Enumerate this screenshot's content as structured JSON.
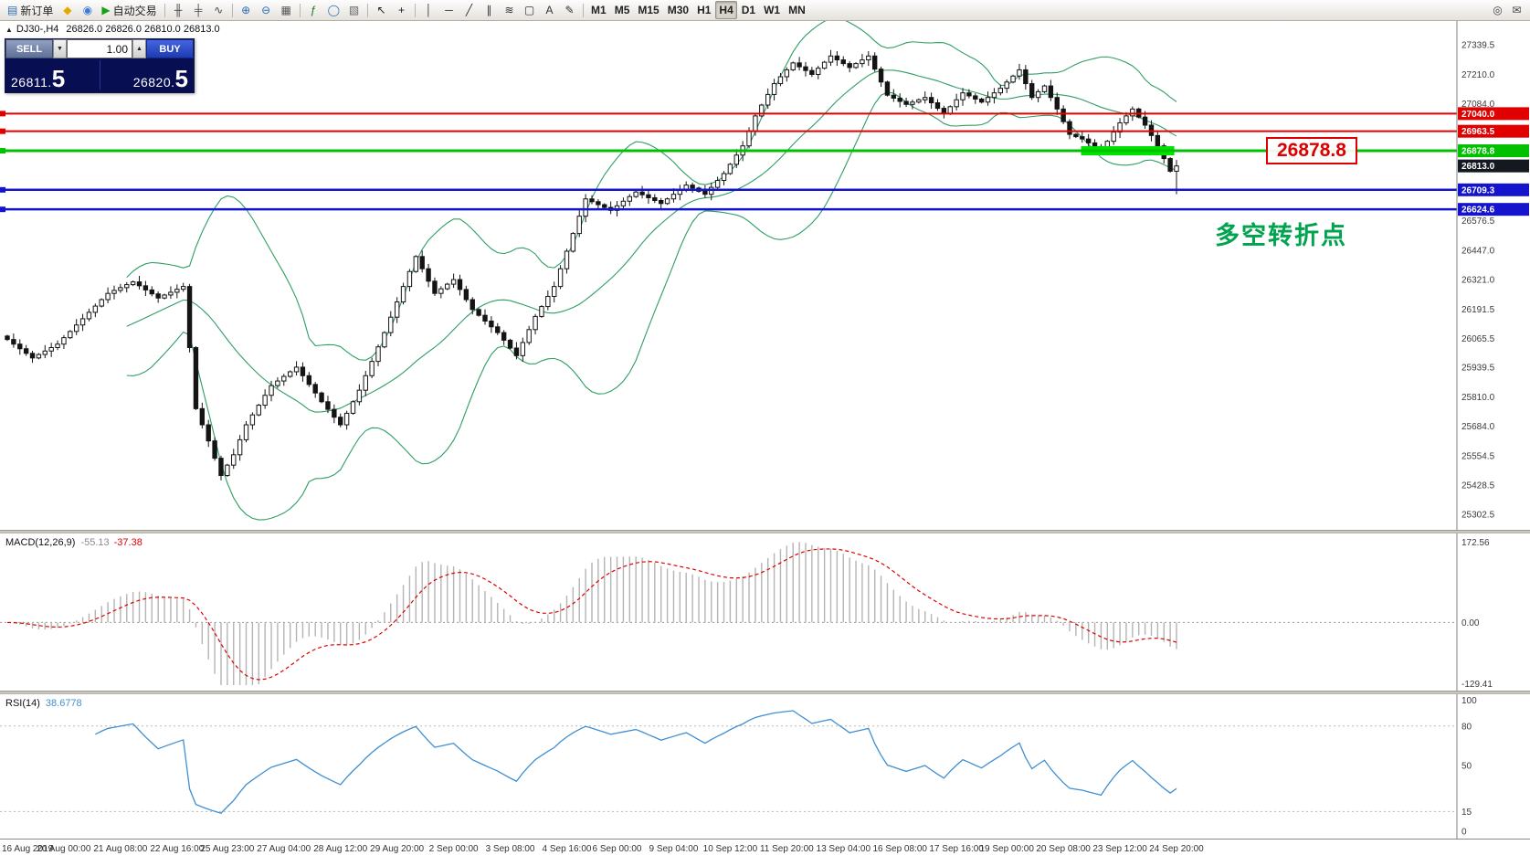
{
  "ui": {
    "collapse": "▲",
    "spin_down": "▼",
    "spin_up": "▲"
  },
  "toolbar": {
    "groups": [
      {
        "name": "trade",
        "items": [
          {
            "name": "new-order-button",
            "glyph": "▤",
            "color": "#2a6db5",
            "label": "新订单"
          },
          {
            "name": "mql5-icon",
            "glyph": "◆",
            "color": "#e2a900",
            "label": ""
          },
          {
            "name": "community-icon",
            "glyph": "◉",
            "color": "#3a7bd5",
            "label": ""
          },
          {
            "name": "autotrade-button",
            "glyph": "▶",
            "color": "#18a018",
            "label": "自动交易"
          }
        ]
      },
      {
        "name": "chart-type",
        "items": [
          {
            "name": "bar-chart-button",
            "glyph": "╫",
            "color": "#444",
            "label": ""
          },
          {
            "name": "candlestick-chart-button",
            "glyph": "╪",
            "color": "#444",
            "label": ""
          },
          {
            "name": "line-chart-button",
            "glyph": "∿",
            "color": "#444",
            "label": ""
          }
        ]
      },
      {
        "name": "zoom",
        "items": [
          {
            "name": "zoom-in-button",
            "glyph": "⊕",
            "color": "#2a6db5",
            "label": ""
          },
          {
            "name": "zoom-out-button",
            "glyph": "⊖",
            "color": "#2a6db5",
            "label": ""
          },
          {
            "name": "tile-windows-button",
            "glyph": "▦",
            "color": "#555",
            "label": ""
          }
        ]
      },
      {
        "name": "insert",
        "items": [
          {
            "name": "indicators-button",
            "glyph": "ƒ",
            "color": "#18770f",
            "label": ""
          },
          {
            "name": "objects-button",
            "glyph": "◯",
            "color": "#2a6db5",
            "label": ""
          },
          {
            "name": "templates-button",
            "glyph": "▧",
            "color": "#666",
            "label": ""
          }
        ]
      },
      {
        "name": "pointer",
        "items": [
          {
            "name": "cursor-button",
            "glyph": "↖",
            "color": "#222",
            "label": ""
          },
          {
            "name": "crosshair-button",
            "glyph": "+",
            "color": "#222",
            "label": ""
          }
        ]
      },
      {
        "name": "draw",
        "items": [
          {
            "name": "vertical-line-button",
            "glyph": "│",
            "color": "#333",
            "label": ""
          },
          {
            "name": "horizontal-line-button",
            "glyph": "─",
            "color": "#333",
            "label": ""
          },
          {
            "name": "trendline-button",
            "glyph": "╱",
            "color": "#333",
            "label": ""
          },
          {
            "name": "channel-button",
            "glyph": "∥",
            "color": "#333",
            "label": ""
          },
          {
            "name": "fibonacci-button",
            "glyph": "≋",
            "color": "#333",
            "label": ""
          },
          {
            "name": "shapes-button",
            "glyph": "▢",
            "color": "#333",
            "label": ""
          },
          {
            "name": "text-button",
            "glyph": "A",
            "color": "#333",
            "label": ""
          },
          {
            "name": "arrow-tools-button",
            "glyph": "✎",
            "color": "#333",
            "label": ""
          }
        ]
      },
      {
        "name": "timeframes",
        "items": [
          {
            "name": "timeframe-m1",
            "label": "M1"
          },
          {
            "name": "timeframe-m5",
            "label": "M5"
          },
          {
            "name": "timeframe-m15",
            "label": "M15"
          },
          {
            "name": "timeframe-m30",
            "label": "M30"
          },
          {
            "name": "timeframe-h1",
            "label": "H1"
          },
          {
            "name": "timeframe-h4",
            "label": "H4",
            "active": true
          },
          {
            "name": "timeframe-d1",
            "label": "D1"
          },
          {
            "name": "timeframe-w1",
            "label": "W1"
          },
          {
            "name": "timeframe-mn",
            "label": "MN"
          }
        ]
      },
      {
        "name": "right",
        "items": [
          {
            "name": "search-icon",
            "glyph": "◎",
            "color": "#444",
            "label": ""
          },
          {
            "name": "mail-icon",
            "glyph": "✉",
            "color": "#444",
            "label": ""
          }
        ]
      }
    ]
  },
  "trade": {
    "sell_label": "SELL",
    "buy_label": "BUY",
    "volume": "1.00",
    "sell_price": "26811.5",
    "buy_price": "26820.5"
  },
  "chart_data": {
    "type": "candlestick",
    "symbol_period": "DJ30-,H4",
    "ohlc_text": "26826.0 26826.0 26810.0 26813.0",
    "closes": [
      26060,
      26040,
      26020,
      26000,
      25980,
      25995,
      26010,
      26025,
      26040,
      26068,
      26095,
      26123,
      26150,
      26178,
      26205,
      26233,
      26260,
      26273,
      26285,
      26298,
      26310,
      26293,
      26275,
      26258,
      26240,
      26253,
      26265,
      26278,
      26290,
      26025,
      25760,
      25690,
      25620,
      25545,
      25470,
      25515,
      25560,
      25625,
      25690,
      25733,
      25775,
      25818,
      25860,
      25880,
      25900,
      25920,
      25940,
      25903,
      25865,
      25828,
      25790,
      25757,
      25723,
      25690,
      25740,
      25790,
      25840,
      25903,
      25965,
      26028,
      26090,
      26157,
      26223,
      26290,
      26355,
      26420,
      26367,
      26313,
      26260,
      26280,
      26300,
      26320,
      26277,
      26233,
      26190,
      26165,
      26140,
      26115,
      26090,
      26057,
      26023,
      25990,
      26047,
      26103,
      26160,
      26203,
      26247,
      26290,
      26367,
      26443,
      26520,
      26595,
      26670,
      26658,
      26645,
      26633,
      26620,
      26640,
      26660,
      26680,
      26700,
      26688,
      26675,
      26663,
      26650,
      26670,
      26690,
      26710,
      26730,
      26717,
      26703,
      26690,
      26720,
      26750,
      26780,
      26820,
      26860,
      26900,
      26965,
      27030,
      27077,
      27123,
      27170,
      27200,
      27230,
      27260,
      27243,
      27227,
      27210,
      27237,
      27263,
      27290,
      27273,
      27257,
      27240,
      27257,
      27273,
      27290,
      27233,
      27177,
      27120,
      27107,
      27093,
      27080,
      27090,
      27100,
      27110,
      27087,
      27063,
      27040,
      27070,
      27100,
      27130,
      27117,
      27103,
      27090,
      27110,
      27130,
      27150,
      27177,
      27203,
      27230,
      27170,
      27110,
      27135,
      27160,
      27110,
      27060,
      27005,
      26950,
      26940,
      26930,
      26913,
      26897,
      26880,
      26920,
      26960,
      27000,
      27030,
      27060,
      27025,
      26990,
      26945,
      26900,
      26845,
      26790,
      26813
    ],
    "last_low": 26690,
    "price_axis": {
      "min": 25270,
      "max": 27410,
      "labels": [
        27339.5,
        27210.0,
        27084.0,
        26576.5,
        26447.0,
        26321.0,
        26191.5,
        26065.5,
        25939.5,
        25810.0,
        25684.0,
        25554.5,
        25428.5,
        25302.5
      ]
    },
    "price_lines": [
      {
        "price": 27040.0,
        "label": "27040.0",
        "color": "#e00000",
        "width": 2
      },
      {
        "price": 26963.5,
        "label": "26963.5",
        "color": "#e00000",
        "width": 2
      },
      {
        "price": 26878.8,
        "label": "26878.8",
        "color": "#00c000",
        "width": 3
      },
      {
        "price": 26709.3,
        "label": "26709.3",
        "color": "#1414cc",
        "width": 2.5
      },
      {
        "price": 26624.6,
        "label": "26624.6",
        "color": "#1414cc",
        "width": 2.5
      }
    ],
    "current_price": {
      "value": 26813.0,
      "label": "26813.0",
      "bg": "#14181f"
    },
    "highlight_box": {
      "x1": 0.742,
      "x2": 0.806,
      "price": 26878.8,
      "height": 10,
      "color": "#00e200"
    },
    "bollinger": {
      "period": 20,
      "deviation": 2,
      "color": "#2f9e63"
    },
    "candle_colors": {
      "bull_fill": "#ffffff",
      "bear_fill": "#141414",
      "outline": "#141414"
    },
    "macd": {
      "label": "MACD(12,26,9)",
      "value_main": "-55.13",
      "value_signal": "-37.38",
      "axis_labels": [
        "172.56",
        "0.00",
        "-129.41"
      ],
      "vmax": 180,
      "vmin": -135,
      "hist_color": "#b4b4b4",
      "signal_color": "#dd0000"
    },
    "rsi": {
      "label": "RSI(14)",
      "value": "38.6778",
      "axis_labels": [
        100,
        80,
        50,
        15,
        0
      ],
      "levels": [
        80,
        15
      ],
      "line_color": "#3f8fd2"
    },
    "time_axis": [
      "16 Aug 2019",
      "20 Aug 00:00",
      "21 Aug 08:00",
      "22 Aug 16:00",
      "25 Aug 23:00",
      "27 Aug 04:00",
      "28 Aug 12:00",
      "29 Aug 20:00",
      "2 Sep 00:00",
      "3 Sep 08:00",
      "4 Sep 16:00",
      "6 Sep 00:00",
      "9 Sep 04:00",
      "10 Sep 12:00",
      "11 Sep 20:00",
      "13 Sep 04:00",
      "16 Sep 08:00",
      "17 Sep 16:00",
      "19 Sep 00:00",
      "20 Sep 08:00",
      "23 Sep 12:00",
      "24 Sep 20:00"
    ],
    "annotation": {
      "callout": "26878.8",
      "callout_color": "#dd0000",
      "note": "多空转折点",
      "note_color": "#00a34e"
    }
  }
}
